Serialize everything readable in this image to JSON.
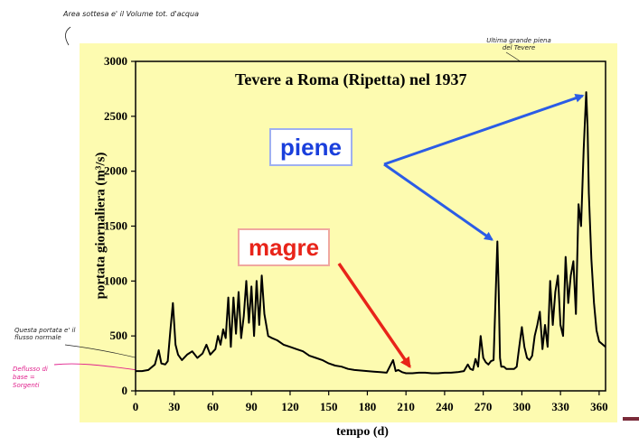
{
  "chart_data": {
    "type": "line",
    "title": "Tevere a Roma (Ripetta) nel 1937",
    "xlabel": "tempo (d)",
    "ylabel": "portata giornaliera (m³/s)",
    "xlim": [
      0,
      365
    ],
    "ylim": [
      0,
      3000
    ],
    "xticks": [
      0,
      30,
      60,
      90,
      120,
      150,
      180,
      210,
      240,
      270,
      300,
      330,
      360
    ],
    "yticks": [
      0,
      500,
      1000,
      1500,
      2000,
      2500,
      3000
    ],
    "grid": "horizontal",
    "series": [
      {
        "x": [
          0,
          5,
          10,
          15,
          18,
          20,
          23,
          25,
          27,
          29,
          31,
          33,
          36,
          40,
          44,
          48,
          52,
          55,
          58,
          62,
          64,
          66,
          68,
          70,
          72,
          74,
          76,
          78,
          80,
          82,
          84,
          86,
          88,
          90,
          92,
          94,
          96,
          98,
          100,
          103,
          106,
          110,
          115,
          120,
          125,
          130,
          135,
          140,
          145,
          150,
          155,
          160,
          165,
          170,
          175,
          180,
          185,
          190,
          195,
          200,
          202,
          204,
          207,
          210,
          215,
          220,
          225,
          230,
          235,
          240,
          245,
          250,
          255,
          258,
          260,
          262,
          264,
          266,
          268,
          270,
          272,
          274,
          276,
          278,
          280,
          281,
          282,
          283,
          284,
          286,
          288,
          290,
          292,
          294,
          296,
          298,
          300,
          302,
          304,
          306,
          308,
          310,
          312,
          314,
          316,
          318,
          320,
          322,
          324,
          326,
          328,
          330,
          332,
          334,
          336,
          338,
          340,
          342,
          344,
          346,
          348,
          350,
          351,
          352,
          354,
          356,
          358,
          360,
          365
        ],
        "y": [
          180,
          180,
          190,
          240,
          370,
          250,
          240,
          270,
          550,
          800,
          420,
          330,
          280,
          330,
          360,
          300,
          340,
          420,
          330,
          380,
          500,
          420,
          560,
          480,
          850,
          400,
          850,
          520,
          900,
          480,
          680,
          1000,
          620,
          950,
          500,
          1000,
          600,
          1050,
          700,
          500,
          480,
          460,
          420,
          400,
          380,
          360,
          320,
          300,
          280,
          250,
          230,
          220,
          200,
          190,
          185,
          180,
          175,
          170,
          165,
          280,
          180,
          190,
          170,
          160,
          160,
          165,
          165,
          160,
          160,
          165,
          165,
          170,
          180,
          240,
          200,
          190,
          290,
          220,
          500,
          300,
          260,
          240,
          270,
          280,
          1000,
          1360,
          900,
          300,
          220,
          220,
          200,
          200,
          200,
          200,
          220,
          400,
          580,
          400,
          300,
          280,
          320,
          500,
          600,
          720,
          380,
          600,
          400,
          1000,
          600,
          900,
          1050,
          600,
          500,
          1220,
          800,
          1050,
          1180,
          700,
          1700,
          1500,
          2200,
          2720,
          2400,
          1800,
          1200,
          800,
          550,
          450,
          400
        ]
      }
    ],
    "baseflow": [
      160,
      160,
      175,
      175
    ],
    "baseflow_x": [
      0,
      120,
      220,
      365
    ],
    "annotations": [
      "piene",
      "magre"
    ]
  },
  "handwritten": {
    "top": "Area sottesa e' il Volume tot. d'acqua",
    "peak": "Ultima grande piena del Tevere",
    "left": "Questa portata e' il flusso normale",
    "base": "Deflusso di base = Sorgenti"
  },
  "colors": {
    "plot_bg": "#fdfbb0",
    "series": "#000000",
    "piene": "#1a3fdc",
    "magre": "#e8241a",
    "pen": "#e0208c"
  }
}
